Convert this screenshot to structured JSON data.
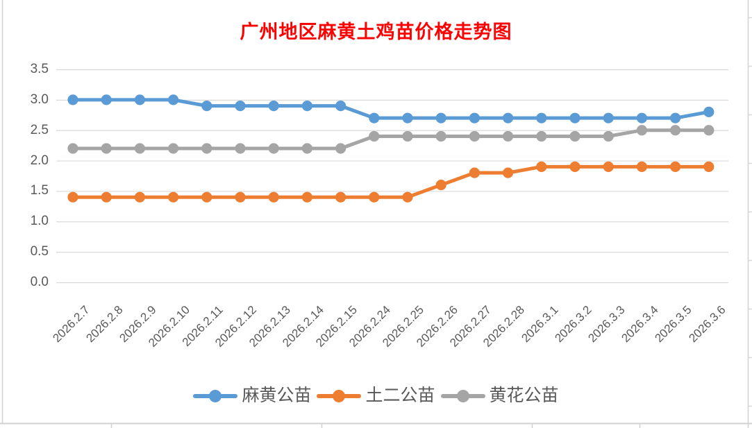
{
  "title": {
    "text": "广州地区麻黄土鸡苗价格走势图",
    "color": "#FF0000"
  },
  "chart_data": {
    "type": "line",
    "title": "广州地区麻黄土鸡苗价格走势图",
    "categories": [
      "2026.2.7",
      "2026.2.8",
      "2026.2.9",
      "2026.2.10",
      "2026.2.11",
      "2026.2.12",
      "2026.2.13",
      "2026.2.14",
      "2026.2.15",
      "2026.2.24",
      "2026.2.25",
      "2026.2.26",
      "2026.2.27",
      "2026.2.28",
      "2026.3.1",
      "2026.3.2",
      "2026.3.3",
      "2026.3.4",
      "2026.3.5",
      "2026.3.6"
    ],
    "series": [
      {
        "name": "麻黄公苗",
        "color": "#5B9BD5",
        "values": [
          3.0,
          3.0,
          3.0,
          3.0,
          2.9,
          2.9,
          2.9,
          2.9,
          2.9,
          2.7,
          2.7,
          2.7,
          2.7,
          2.7,
          2.7,
          2.7,
          2.7,
          2.7,
          2.7,
          2.8
        ]
      },
      {
        "name": "土二公苗",
        "color": "#ED7D31",
        "values": [
          1.4,
          1.4,
          1.4,
          1.4,
          1.4,
          1.4,
          1.4,
          1.4,
          1.4,
          1.4,
          1.4,
          1.6,
          1.8,
          1.8,
          1.9,
          1.9,
          1.9,
          1.9,
          1.9,
          1.9
        ]
      },
      {
        "name": "黄花公苗",
        "color": "#A5A5A5",
        "values": [
          2.2,
          2.2,
          2.2,
          2.2,
          2.2,
          2.2,
          2.2,
          2.2,
          2.2,
          2.4,
          2.4,
          2.4,
          2.4,
          2.4,
          2.4,
          2.4,
          2.4,
          2.5,
          2.5,
          2.5
        ]
      }
    ],
    "ylim": [
      0,
      3.5
    ],
    "ytick_step": 0.5,
    "ytick_labels": [
      "3.5",
      "3.0",
      "2.5",
      "2.0",
      "1.5",
      "1.0",
      "0.5",
      "0.0"
    ],
    "xlabel": "",
    "ylabel": "",
    "grid": true,
    "legend_position": "bottom",
    "marker": "circle"
  },
  "colors": {
    "title": "#FF0000",
    "tick_label": "#595959",
    "gridline": "#D9D9D9",
    "worksheet_line": "#D2D2D2"
  }
}
